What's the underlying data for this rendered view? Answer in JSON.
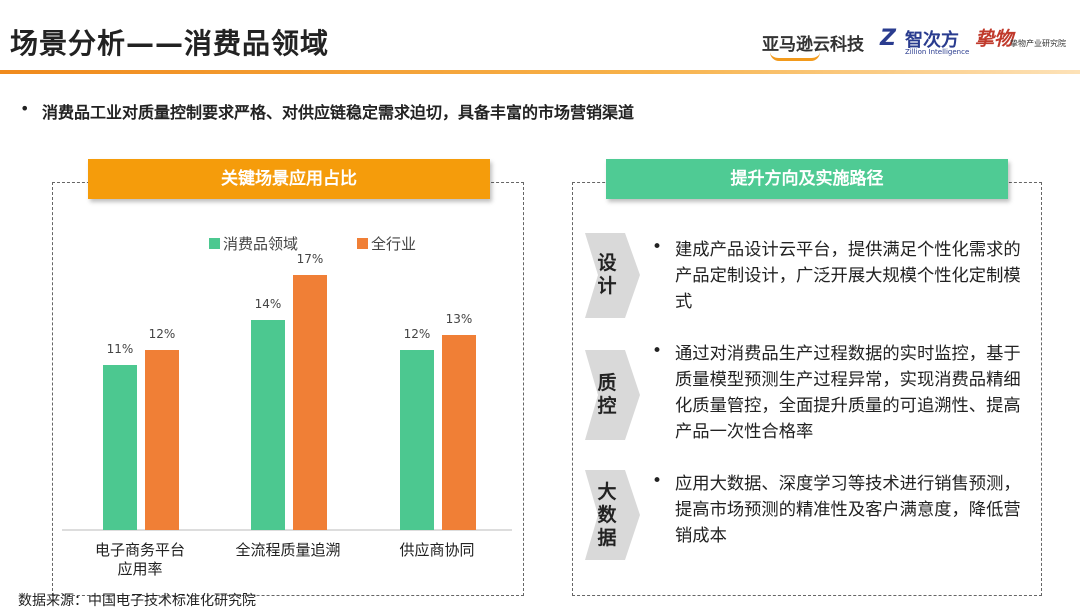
{
  "header": {
    "title": "场景分析——消费品领域",
    "logos": [
      "亚马逊云科技",
      "智次方",
      "Zillion Intelligence",
      "挚物",
      "挚物产业研究院"
    ]
  },
  "bullet": "消费品工业对质量控制要求严格、对供应链稳定需求迫切，具备丰富的市场营销渠道",
  "left_panel": {
    "chart_data": {
      "type": "bar",
      "title": "关键场景应用占比",
      "categories": [
        "电子商务平台\n应用率",
        "全流程质量追溯",
        "供应商协同"
      ],
      "series": [
        {
          "name": "消费品领域",
          "color": "#4cc890",
          "values": [
            11,
            14,
            12
          ],
          "value_labels": [
            "11%",
            "14%",
            "12%"
          ]
        },
        {
          "name": "全行业",
          "color": "#f07f36",
          "values": [
            12,
            17,
            13
          ],
          "value_labels": [
            "12%",
            "17%",
            "13%"
          ]
        }
      ]
    }
  },
  "right_panel": {
    "title": "提升方向及实施路径",
    "items": [
      {
        "label": "设计",
        "text": "建成产品设计云平台，提供满足个性化需求的产品定制设计，广泛开展大规模个性化定制模式"
      },
      {
        "label": "质控",
        "text": "通过对消费品生产过程数据的实时监控，基于质量模型预测生产过程异常，实现消费品精细化质量管控，全面提升质量的可追溯性、提高产品一次性合格率"
      },
      {
        "label": "大数据",
        "text": "应用大数据、深度学习等技术进行销售预测，提高市场预测的精准性及客户满意度，降低营销成本"
      }
    ]
  },
  "source": "数据来源：中国电子技术标准化研究院"
}
